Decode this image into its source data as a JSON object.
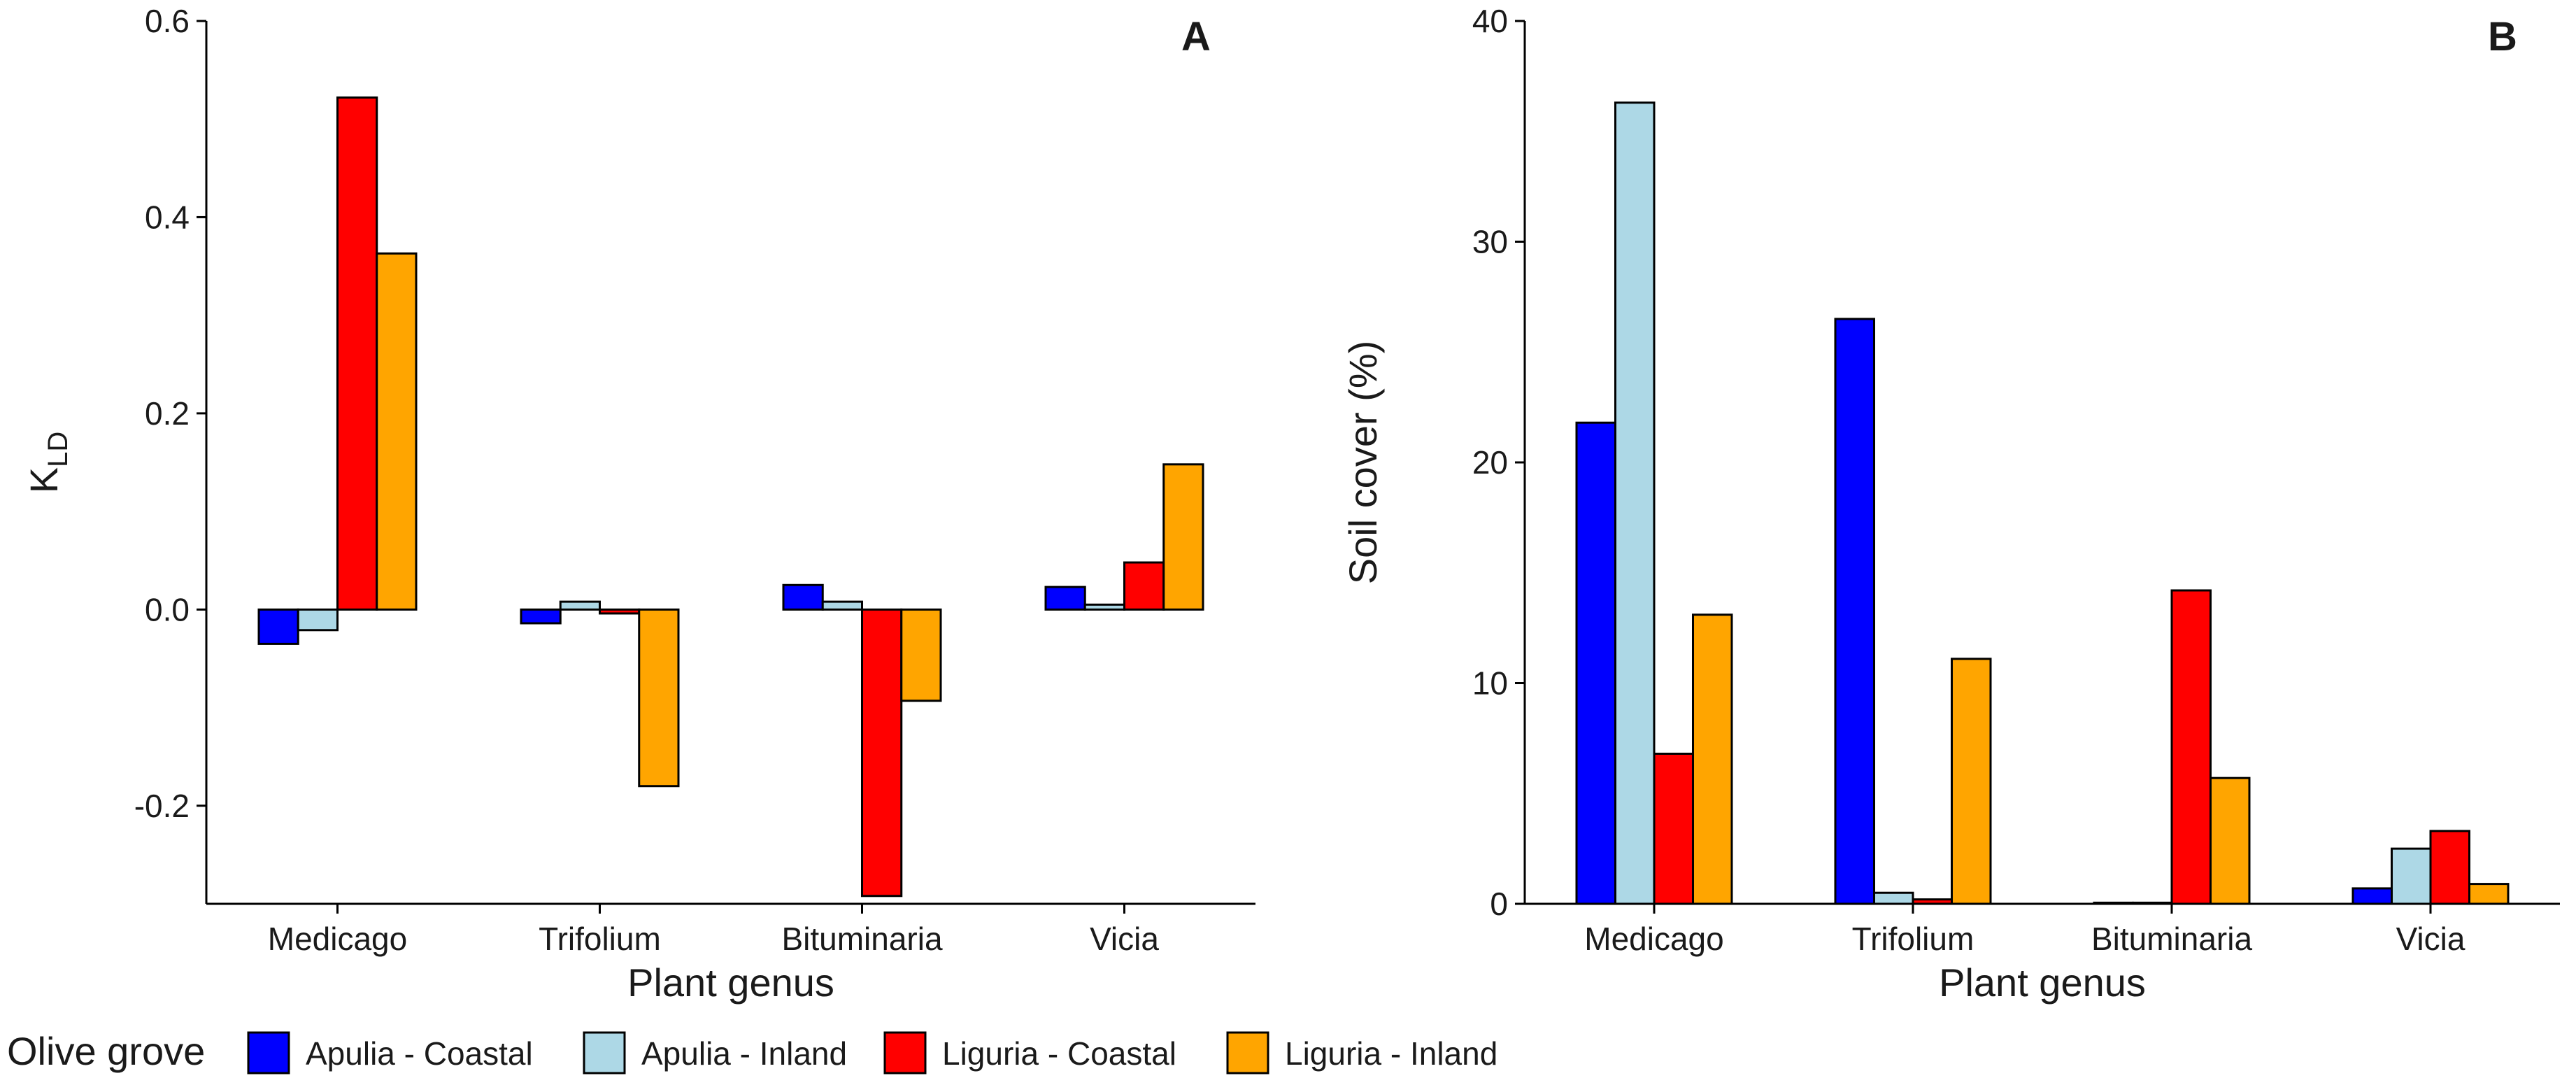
{
  "chart_data": [
    {
      "type": "bar",
      "panel_label": "A",
      "categories": [
        "Medicago",
        "Trifolium",
        "Bituminaria",
        "Vicia"
      ],
      "series": [
        {
          "name": "Apulia - Coastal",
          "values": [
            -0.035,
            -0.014,
            0.025,
            0.023
          ]
        },
        {
          "name": "Apulia - Inland",
          "values": [
            -0.021,
            0.008,
            0.008,
            0.005
          ]
        },
        {
          "name": "Liguria - Coastal",
          "values": [
            0.522,
            -0.004,
            -0.292,
            0.048
          ]
        },
        {
          "name": "Liguria - Inland",
          "values": [
            0.363,
            -0.18,
            -0.093,
            0.148
          ]
        }
      ],
      "xlabel": "Plant genus",
      "ylabel_main": "K",
      "ylabel_sub": "LD",
      "ylim": [
        -0.3,
        0.6
      ],
      "yticks": [
        -0.2,
        0.0,
        0.2,
        0.4,
        0.6
      ],
      "ytick_labels": [
        "-0.2",
        "0.0",
        "0.2",
        "0.4",
        "0.6"
      ],
      "grid": false
    },
    {
      "type": "bar",
      "panel_label": "B",
      "categories": [
        "Medicago",
        "Trifolium",
        "Bituminaria",
        "Vicia"
      ],
      "series": [
        {
          "name": "Apulia - Coastal",
          "values": [
            21.8,
            26.5,
            0.05,
            0.7
          ]
        },
        {
          "name": "Apulia - Inland",
          "values": [
            36.3,
            0.5,
            0.05,
            2.5
          ]
        },
        {
          "name": "Liguria - Coastal",
          "values": [
            6.8,
            0.2,
            14.2,
            3.3
          ]
        },
        {
          "name": "Liguria - Inland",
          "values": [
            13.1,
            11.1,
            5.7,
            0.9
          ]
        }
      ],
      "xlabel": "Plant genus",
      "ylabel": "Soil cover (%)",
      "ylim": [
        0,
        40
      ],
      "yticks": [
        0,
        10,
        20,
        30,
        40
      ],
      "ytick_labels": [
        "0",
        "10",
        "20",
        "30",
        "40"
      ],
      "grid": false
    }
  ],
  "legend": {
    "title": "Olive grove",
    "placement": "bottom",
    "items": [
      {
        "label": "Apulia - Coastal",
        "color": "#0000ff"
      },
      {
        "label": "Apulia - Inland",
        "color": "#add8e6"
      },
      {
        "label": "Liguria - Coastal",
        "color": "#ff0000"
      },
      {
        "label": "Liguria - Inland",
        "color": "#ffa500"
      }
    ]
  }
}
